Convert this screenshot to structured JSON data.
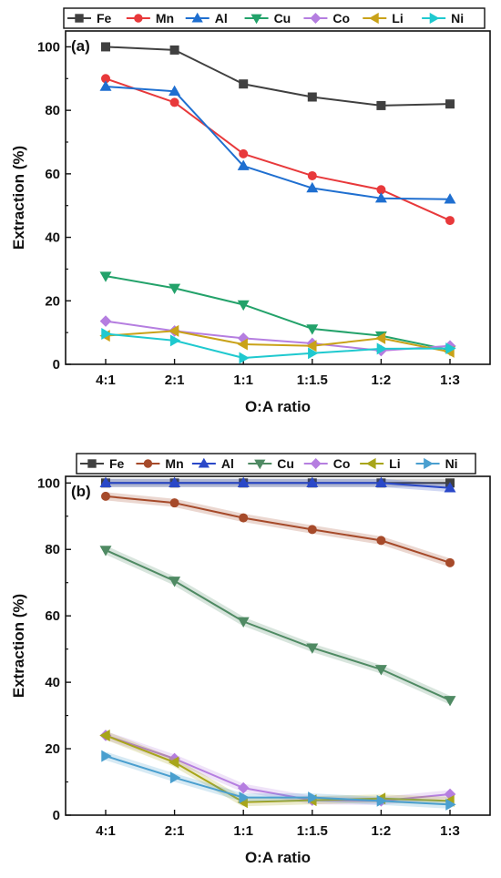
{
  "chart_data": [
    {
      "type": "line",
      "panel_label": "(a)",
      "categories": [
        "4:1",
        "2:1",
        "1:1",
        "1:1.5",
        "1:2",
        "1:3"
      ],
      "xlabel": "O:A ratio",
      "ylabel": "Extraction (%)",
      "ylim": [
        0,
        105
      ],
      "yticks": [
        0,
        20,
        40,
        60,
        80,
        100
      ],
      "grid": false,
      "legend_position": "top",
      "series": [
        {
          "name": "Fe",
          "color": "#404040",
          "marker": "square",
          "values": [
            100,
            99,
            88.3,
            84.2,
            81.5,
            82
          ]
        },
        {
          "name": "Mn",
          "color": "#e8393b",
          "marker": "circle",
          "values": [
            90,
            82.5,
            66.3,
            59.4,
            55,
            45.3
          ]
        },
        {
          "name": "Al",
          "color": "#1f6fd0",
          "marker": "triangle-up",
          "values": [
            87.5,
            86,
            62.5,
            55.5,
            52.3,
            52
          ]
        },
        {
          "name": "Cu",
          "color": "#23a26a",
          "marker": "triangle-down",
          "values": [
            27.8,
            24,
            18.8,
            11.2,
            9,
            4.5
          ]
        },
        {
          "name": "Co",
          "color": "#b57ee0",
          "marker": "diamond",
          "values": [
            13.6,
            10.5,
            8.2,
            6.6,
            4.3,
            5.8
          ]
        },
        {
          "name": "Li",
          "color": "#c9a219",
          "marker": "triangle-left",
          "values": [
            9,
            10.5,
            6.3,
            5.8,
            8.2,
            3.9
          ]
        },
        {
          "name": "Ni",
          "color": "#1fc9cf",
          "marker": "triangle-right",
          "values": [
            9.6,
            7.5,
            2,
            3.5,
            4.9,
            5
          ]
        }
      ]
    },
    {
      "type": "line",
      "panel_label": "(b)",
      "categories": [
        "4:1",
        "2:1",
        "1:1",
        "1:1.5",
        "1:2",
        "1:3"
      ],
      "xlabel": "O:A ratio",
      "ylabel": "Extraction (%)",
      "ylim": [
        0,
        102
      ],
      "yticks": [
        0,
        20,
        40,
        60,
        80,
        100
      ],
      "grid": false,
      "legend_position": "top",
      "series": [
        {
          "name": "Fe",
          "color": "#404040",
          "marker": "square",
          "values": [
            100,
            100,
            100,
            100,
            100,
            100
          ]
        },
        {
          "name": "Mn",
          "color": "#a64a2a",
          "marker": "circle",
          "values": [
            96,
            94,
            89.5,
            86,
            82.7,
            76
          ]
        },
        {
          "name": "Al",
          "color": "#2a48c8",
          "marker": "triangle-up",
          "values": [
            100,
            100,
            100,
            100,
            100,
            98.5
          ]
        },
        {
          "name": "Cu",
          "color": "#4f8a63",
          "marker": "triangle-down",
          "values": [
            79.8,
            70.5,
            58.3,
            50.4,
            43.9,
            34.6
          ]
        },
        {
          "name": "Co",
          "color": "#b57ee0",
          "marker": "diamond",
          "values": [
            24,
            17,
            8.2,
            4.5,
            4.3,
            6.3
          ]
        },
        {
          "name": "Li",
          "color": "#a8a51a",
          "marker": "triangle-left",
          "values": [
            24,
            15.9,
            3.9,
            4.5,
            5,
            4.3
          ]
        },
        {
          "name": "Ni",
          "color": "#4a9fcf",
          "marker": "triangle-right",
          "values": [
            17.8,
            11.3,
            5.3,
            5.3,
            4.3,
            3.2
          ]
        }
      ]
    }
  ]
}
